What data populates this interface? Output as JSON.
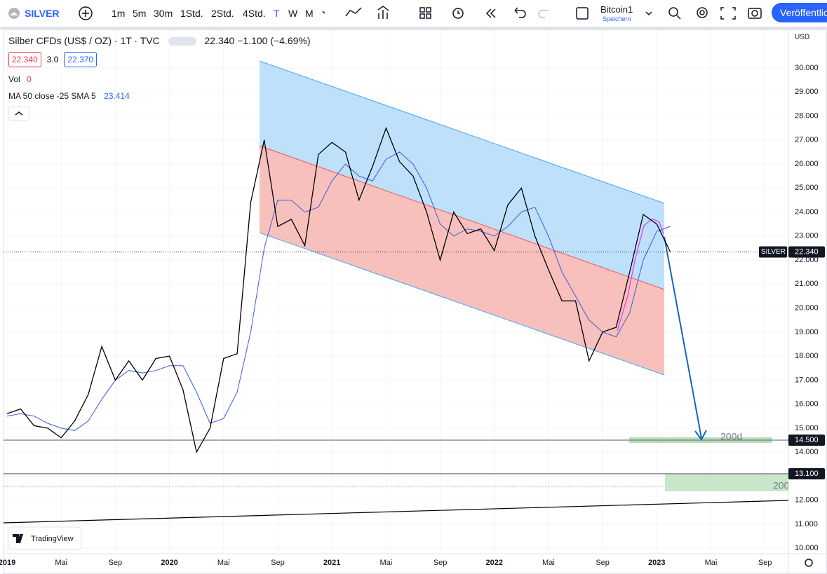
{
  "toolbar": {
    "symbol": "SILVER",
    "intervals": [
      "1m",
      "5m",
      "30m",
      "1Std.",
      "2Std.",
      "4Std.",
      "T",
      "W",
      "M"
    ],
    "layout_name": "Bitcoin1",
    "layout_sub": "Speichern",
    "publish": "Veröffentlichen"
  },
  "legend": {
    "title": "Silber CFDs (US$ / OZ) · 1T · TVC",
    "last": "22.340",
    "change": "−1.100",
    "change_pct": "(−4.69%)",
    "bid": "22.340",
    "spread": "3.0",
    "ask": "22.370",
    "vol_label": "Vol",
    "vol_value": "0",
    "ma_label": "MA 50 close -25 SMA 5",
    "ma_value": "23.414"
  },
  "price_axis": {
    "currency": "USD",
    "current_name": "SILVER",
    "current_label": "22.340"
  },
  "watermark": "TradingView",
  "chart_data": {
    "type": "line",
    "x": [
      "2019-01",
      "2019-02",
      "2019-03",
      "2019-04",
      "2019-05",
      "2019-06",
      "2019-07",
      "2019-08",
      "2019-09",
      "2019-10",
      "2019-11",
      "2019-12",
      "2020-01",
      "2020-02",
      "2020-03",
      "2020-04",
      "2020-05",
      "2020-06",
      "2020-07",
      "2020-08",
      "2020-09",
      "2020-10",
      "2020-11",
      "2020-12",
      "2021-01",
      "2021-02",
      "2021-03",
      "2021-04",
      "2021-05",
      "2021-06",
      "2021-07",
      "2021-08",
      "2021-09",
      "2021-10",
      "2021-11",
      "2021-12",
      "2022-01",
      "2022-02",
      "2022-03",
      "2022-04",
      "2022-05",
      "2022-06",
      "2022-07",
      "2022-08",
      "2022-09",
      "2022-10",
      "2022-11",
      "2022-12",
      "2023-01",
      "2023-02"
    ],
    "series": [
      {
        "color": "#000000",
        "values": [
          15.6,
          15.8,
          15.1,
          15.0,
          14.6,
          15.3,
          16.4,
          18.4,
          17.0,
          17.8,
          17.0,
          17.9,
          18.0,
          16.6,
          14.0,
          15.0,
          17.9,
          18.1,
          24.4,
          27.0,
          23.4,
          23.7,
          22.6,
          26.4,
          26.9,
          26.5,
          24.5,
          25.9,
          27.5,
          26.1,
          25.5,
          24.0,
          22.0,
          24.0,
          23.1,
          23.3,
          22.4,
          24.3,
          25.0,
          23.0,
          21.6,
          20.3,
          20.3,
          17.8,
          19.0,
          19.2,
          21.5,
          23.9,
          23.5,
          22.34
        ]
      },
      {
        "color": "#3d5bd6",
        "values": [
          15.5,
          15.6,
          15.5,
          15.2,
          15.0,
          14.9,
          15.3,
          16.2,
          17.0,
          17.4,
          17.3,
          17.4,
          17.6,
          17.6,
          16.5,
          15.2,
          15.4,
          16.5,
          19.0,
          22.5,
          24.5,
          24.5,
          24.0,
          24.2,
          25.3,
          26.0,
          25.5,
          25.3,
          26.2,
          26.5,
          26.0,
          25.0,
          23.5,
          23.0,
          23.3,
          23.2,
          23.0,
          23.4,
          24.0,
          24.2,
          23.0,
          21.5,
          20.5,
          19.5,
          19.0,
          18.8,
          19.8,
          22.0,
          23.2,
          23.4
        ]
      }
    ],
    "xlim": [
      "2018-12",
      "2023-10"
    ],
    "xticks": [
      {
        "value": "2019-01",
        "label": "2019"
      },
      {
        "value": "2019-05",
        "label": "Mai"
      },
      {
        "value": "2019-09",
        "label": "Sep"
      },
      {
        "value": "2020-01",
        "label": "2020"
      },
      {
        "value": "2020-05",
        "label": "Mai"
      },
      {
        "value": "2020-09",
        "label": "Sep"
      },
      {
        "value": "2021-01",
        "label": "2021"
      },
      {
        "value": "2021-05",
        "label": "Mai"
      },
      {
        "value": "2021-09",
        "label": "Sep"
      },
      {
        "value": "2022-01",
        "label": "2022"
      },
      {
        "value": "2022-05",
        "label": "Mai"
      },
      {
        "value": "2022-09",
        "label": "Sep"
      },
      {
        "value": "2023-01",
        "label": "2023"
      },
      {
        "value": "2023-05",
        "label": "Mai"
      },
      {
        "value": "2023-09",
        "label": "Sep"
      }
    ],
    "ylim": [
      9.77,
      31.52
    ],
    "yticks": [
      {
        "value": 10,
        "label": "10.000"
      },
      {
        "value": 11,
        "label": "11.000"
      },
      {
        "value": 12,
        "label": "12.000"
      },
      {
        "value": 13,
        "label": "13.000"
      },
      {
        "value": 14,
        "label": "14.000"
      },
      {
        "value": 15,
        "label": "15.000"
      },
      {
        "value": 16,
        "label": "16.000"
      },
      {
        "value": 17,
        "label": "17.000"
      },
      {
        "value": 18,
        "label": "18.000"
      },
      {
        "value": 19,
        "label": "19.000"
      },
      {
        "value": 20,
        "label": "20.000"
      },
      {
        "value": 21,
        "label": "21.000"
      },
      {
        "value": 22,
        "label": "22.000"
      },
      {
        "value": 23,
        "label": "23.000"
      },
      {
        "value": 24,
        "label": "24.000"
      },
      {
        "value": 25,
        "label": "25.000"
      },
      {
        "value": 26,
        "label": "26.000"
      },
      {
        "value": 27,
        "label": "27.000"
      },
      {
        "value": 28,
        "label": "28.000"
      },
      {
        "value": 29,
        "label": "29.000"
      },
      {
        "value": 30,
        "label": "30.000"
      }
    ],
    "levels": [
      {
        "value": 14.5,
        "label": "14.500"
      },
      {
        "value": 13.1,
        "label": "13.100"
      }
    ],
    "zone_labels": [
      "200d",
      "200"
    ],
    "grid": true
  }
}
